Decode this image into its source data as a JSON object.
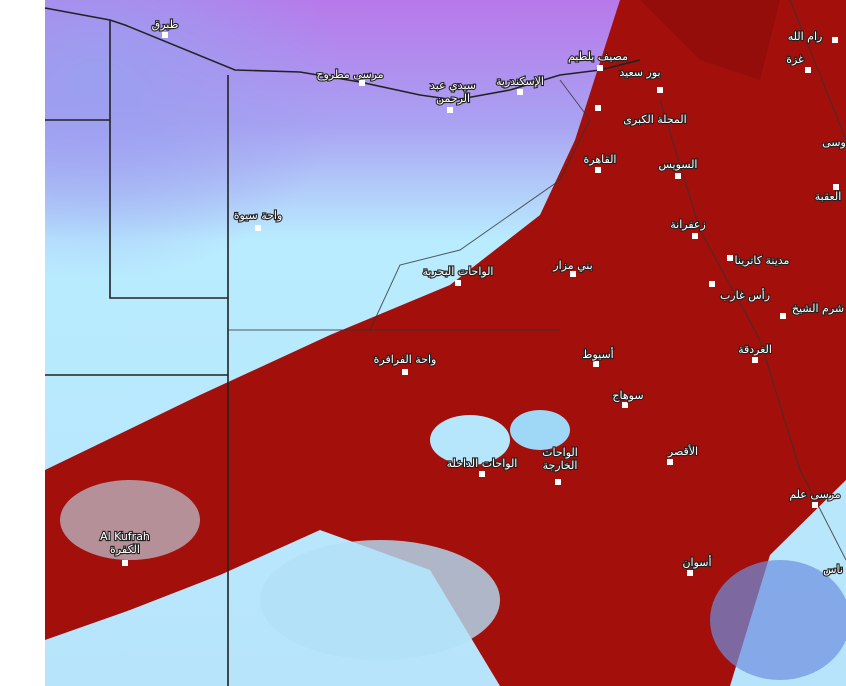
{
  "places": [
    {
      "lines": [
        "طبرق"
      ]
    },
    {
      "lines": [
        "مرسى مطروح"
      ]
    },
    {
      "lines": [
        "سيدي عبد",
        "الرحمن"
      ]
    },
    {
      "lines": [
        "الإسكندرية"
      ]
    },
    {
      "lines": [
        "مصيف بلطيم"
      ]
    },
    {
      "lines": [
        "بور سعيد"
      ]
    },
    {
      "lines": [
        "رام الله"
      ]
    },
    {
      "lines": [
        "غزة"
      ]
    },
    {
      "lines": [
        "المحلة الكبرى"
      ]
    },
    {
      "lines": [
        "القاهرة"
      ]
    },
    {
      "lines": [
        "السويس"
      ]
    },
    {
      "lines": [
        "واحة سيوة"
      ]
    },
    {
      "lines": [
        "زعفرانة"
      ]
    },
    {
      "lines": [
        "بني مزار"
      ]
    },
    {
      "lines": [
        "الواحات البحرية"
      ]
    },
    {
      "lines": [
        "مدينة كاترينا"
      ]
    },
    {
      "lines": [
        "رأس غارب"
      ]
    },
    {
      "lines": [
        "شرم الشيخ"
      ]
    },
    {
      "lines": [
        "العقبة"
      ]
    },
    {
      "lines": [
        "الغردقة"
      ]
    },
    {
      "lines": [
        "أسيوط"
      ]
    },
    {
      "lines": [
        "واحة الفرافرة"
      ]
    },
    {
      "lines": [
        "سوهاج"
      ]
    },
    {
      "lines": [
        "الأقصر"
      ]
    },
    {
      "lines": [
        "الواحات الداخلة"
      ]
    },
    {
      "lines": [
        "الواحات",
        "الخارجة"
      ]
    },
    {
      "lines": [
        "Al Kufrah",
        "الكفرة"
      ]
    },
    {
      "lines": [
        "مرسى علم"
      ]
    },
    {
      "lines": [
        "أسوان"
      ]
    },
    {
      "lines": [
        "وسى"
      ]
    },
    {
      "lines": [
        "ناس"
      ]
    }
  ]
}
